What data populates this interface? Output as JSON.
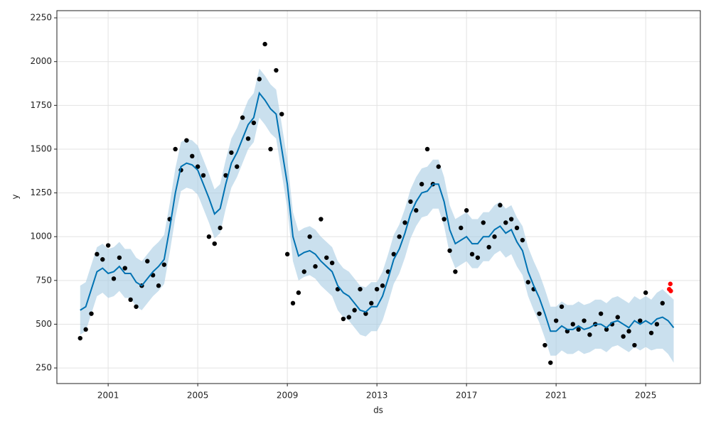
{
  "chart_data": {
    "type": "forecast",
    "x_label": "ds",
    "y_label": "y",
    "xlim": [
      1998.71,
      2027.44
    ],
    "ylim": [
      161,
      2291
    ],
    "xticks": [
      2001,
      2005,
      2009,
      2013,
      2017,
      2021,
      2025
    ],
    "yticks": [
      250,
      500,
      750,
      1000,
      1250,
      1500,
      1750,
      2000,
      2250
    ],
    "grid": true,
    "x": [
      1999.75,
      2000,
      2000.25,
      2000.5,
      2000.75,
      2001,
      2001.25,
      2001.5,
      2001.75,
      2002,
      2002.25,
      2002.5,
      2002.75,
      2003,
      2003.25,
      2003.5,
      2003.75,
      2004,
      2004.25,
      2004.5,
      2004.75,
      2005,
      2005.25,
      2005.5,
      2005.75,
      2006,
      2006.25,
      2006.5,
      2006.75,
      2007,
      2007.25,
      2007.5,
      2007.75,
      2008,
      2008.25,
      2008.5,
      2008.75,
      2009,
      2009.25,
      2009.5,
      2009.75,
      2010,
      2010.25,
      2010.5,
      2010.75,
      2011,
      2011.25,
      2011.5,
      2011.75,
      2012,
      2012.25,
      2012.5,
      2012.75,
      2013,
      2013.25,
      2013.5,
      2013.75,
      2014,
      2014.25,
      2014.5,
      2014.75,
      2015,
      2015.25,
      2015.5,
      2015.75,
      2016,
      2016.25,
      2016.5,
      2016.75,
      2017,
      2017.25,
      2017.5,
      2017.75,
      2018,
      2018.25,
      2018.5,
      2018.75,
      2019,
      2019.25,
      2019.5,
      2019.75,
      2020,
      2020.25,
      2020.5,
      2020.75,
      2021,
      2021.25,
      2021.5,
      2021.75,
      2022,
      2022.25,
      2022.5,
      2022.75,
      2023,
      2023.25,
      2023.5,
      2023.75,
      2024,
      2024.25,
      2024.5,
      2024.75,
      2025,
      2025.25,
      2025.5,
      2025.75,
      2026,
      2026.25
    ],
    "observed": {
      "color": "#000000",
      "values": [
        420,
        470,
        560,
        900,
        870,
        950,
        760,
        880,
        820,
        640,
        600,
        720,
        860,
        780,
        720,
        840,
        1100,
        1500,
        1380,
        1550,
        1460,
        1400,
        1350,
        1000,
        960,
        1050,
        1350,
        1480,
        1400,
        1680,
        1560,
        1650,
        1900,
        2100,
        1500,
        1950,
        1700,
        900,
        620,
        680,
        800,
        1000,
        830,
        1100,
        880,
        850,
        700,
        530,
        540,
        580,
        700,
        560,
        620,
        700,
        720,
        800,
        900,
        1000,
        1080,
        1200,
        1150,
        1300,
        1500,
        1300,
        1400,
        1100,
        920,
        800,
        1050,
        1150,
        900,
        880,
        1080,
        940,
        1000,
        1180,
        1080,
        1100,
        1050,
        980,
        740,
        700,
        560,
        380,
        280,
        520,
        600,
        460,
        500,
        470,
        520,
        440,
        500,
        560,
        470,
        500,
        540,
        430,
        460,
        380,
        520,
        680,
        450,
        500,
        620,
        null,
        null
      ]
    },
    "forecast": {
      "color": "#0072b2",
      "values": [
        580,
        600,
        700,
        800,
        820,
        790,
        800,
        830,
        790,
        790,
        740,
        720,
        760,
        800,
        830,
        870,
        1050,
        1250,
        1400,
        1420,
        1410,
        1380,
        1300,
        1220,
        1130,
        1160,
        1300,
        1420,
        1480,
        1560,
        1640,
        1680,
        1820,
        1780,
        1730,
        1700,
        1500,
        1300,
        1000,
        890,
        910,
        920,
        900,
        860,
        830,
        800,
        720,
        680,
        660,
        620,
        580,
        570,
        600,
        600,
        660,
        760,
        870,
        930,
        1020,
        1130,
        1200,
        1250,
        1260,
        1300,
        1300,
        1200,
        1040,
        960,
        980,
        1000,
        960,
        960,
        1000,
        1000,
        1040,
        1060,
        1020,
        1040,
        970,
        920,
        800,
        720,
        650,
        560,
        460,
        460,
        490,
        470,
        470,
        490,
        470,
        480,
        500,
        500,
        480,
        510,
        520,
        500,
        480,
        520,
        500,
        520,
        500,
        530,
        540,
        520,
        480
      ]
    },
    "interval": {
      "color": "#a6cbe3",
      "lower": [
        440,
        460,
        560,
        660,
        680,
        650,
        660,
        690,
        650,
        650,
        600,
        580,
        620,
        660,
        690,
        730,
        910,
        1110,
        1260,
        1280,
        1270,
        1240,
        1160,
        1080,
        990,
        1020,
        1160,
        1280,
        1340,
        1420,
        1500,
        1540,
        1680,
        1640,
        1590,
        1560,
        1360,
        1160,
        860,
        750,
        770,
        780,
        760,
        720,
        690,
        660,
        580,
        540,
        520,
        480,
        440,
        430,
        460,
        460,
        520,
        620,
        730,
        790,
        880,
        990,
        1060,
        1110,
        1120,
        1160,
        1160,
        1060,
        900,
        820,
        840,
        860,
        820,
        820,
        860,
        860,
        900,
        920,
        880,
        900,
        830,
        780,
        660,
        580,
        510,
        420,
        320,
        320,
        350,
        330,
        330,
        350,
        330,
        340,
        360,
        360,
        340,
        370,
        380,
        360,
        340,
        370,
        350,
        370,
        350,
        360,
        360,
        330,
        280
      ],
      "upper": [
        720,
        740,
        840,
        940,
        960,
        930,
        940,
        970,
        930,
        930,
        880,
        860,
        900,
        940,
        970,
        1010,
        1190,
        1390,
        1540,
        1560,
        1550,
        1520,
        1440,
        1360,
        1270,
        1300,
        1440,
        1560,
        1620,
        1700,
        1780,
        1820,
        1960,
        1920,
        1870,
        1840,
        1640,
        1440,
        1140,
        1030,
        1050,
        1060,
        1040,
        1000,
        970,
        940,
        860,
        820,
        800,
        760,
        720,
        710,
        740,
        740,
        800,
        900,
        1010,
        1070,
        1160,
        1270,
        1340,
        1390,
        1400,
        1440,
        1440,
        1340,
        1180,
        1100,
        1120,
        1140,
        1100,
        1100,
        1140,
        1140,
        1180,
        1200,
        1160,
        1180,
        1110,
        1060,
        940,
        860,
        790,
        700,
        600,
        600,
        630,
        610,
        610,
        630,
        610,
        620,
        640,
        640,
        620,
        650,
        660,
        640,
        620,
        660,
        640,
        660,
        640,
        680,
        700,
        670,
        640
      ]
    },
    "recent": {
      "color": "#ff0000",
      "x": [
        2026.05,
        2026.1,
        2026.12
      ],
      "values": [
        700,
        730,
        690
      ]
    }
  }
}
